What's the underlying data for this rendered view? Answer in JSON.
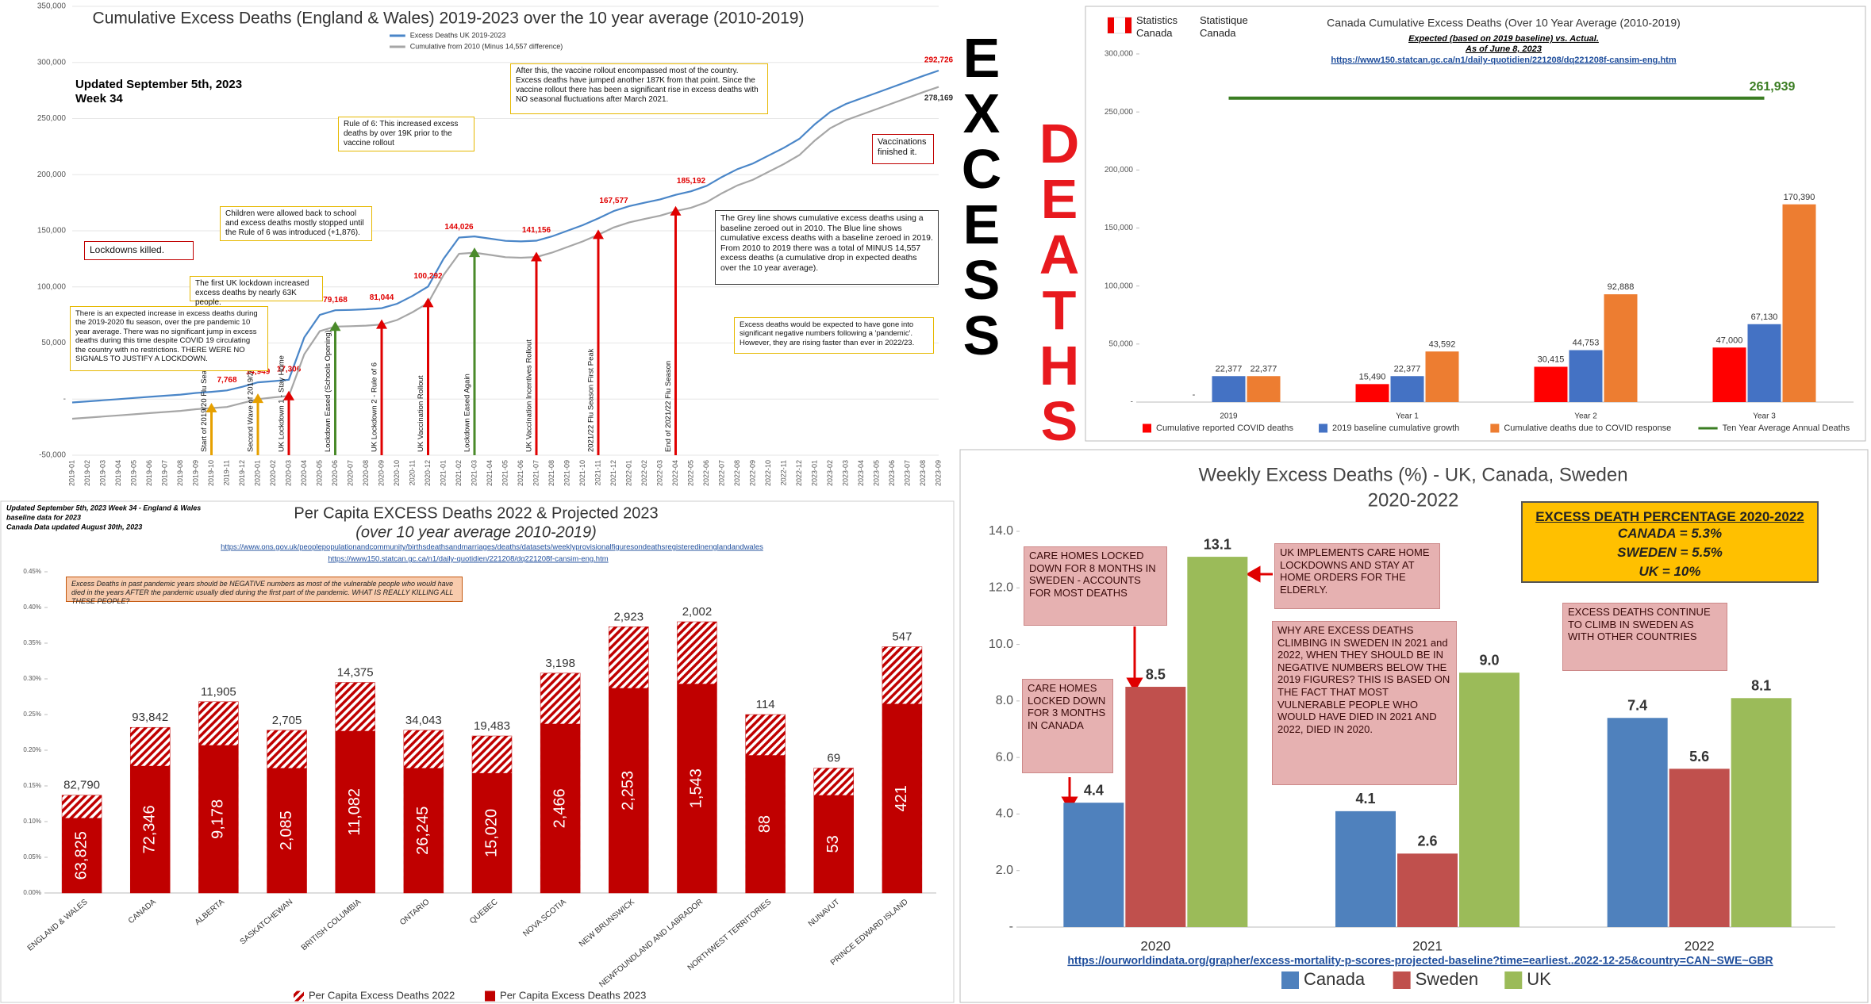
{
  "headline": [
    "EXCESS",
    "DEATHS"
  ],
  "chart_data": [
    {
      "type": "line",
      "title": "Cumulative Excess Deaths (England & Wales) 2019-2023 over the 10 year average (2010-2019)",
      "updated": [
        "Updated September 5th, 2023",
        "Week 34"
      ],
      "categories": [
        "2019-01",
        "2019-02",
        "2019-03",
        "2019-04",
        "2019-05",
        "2019-06",
        "2019-07",
        "2019-08",
        "2019-09",
        "2019-10",
        "2019-11",
        "2019-12",
        "2020-01",
        "2020-02",
        "2020-03",
        "2020-04",
        "2020-05",
        "2020-06",
        "2020-07",
        "2020-08",
        "2020-09",
        "2020-10",
        "2020-11",
        "2020-12",
        "2021-01",
        "2021-02",
        "2021-03",
        "2021-04",
        "2021-05",
        "2021-06",
        "2021-07",
        "2021-08",
        "2021-09",
        "2021-10",
        "2021-11",
        "2021-12",
        "2022-01",
        "2022-02",
        "2022-03",
        "2022-04",
        "2022-05",
        "2022-06",
        "2022-07",
        "2022-08",
        "2022-09",
        "2022-10",
        "2022-11",
        "2022-12",
        "2023-01",
        "2023-02",
        "2023-03",
        "2023-04",
        "2023-05",
        "2023-06",
        "2023-07",
        "2023-08",
        "2023-09"
      ],
      "series": [
        {
          "name": "Excess Deaths UK 2019-2023",
          "color": "#4a86c8",
          "values": [
            -3000,
            -2000,
            -1000,
            0,
            1000,
            2000,
            3000,
            4000,
            5500,
            6500,
            7768,
            11000,
            14949,
            16000,
            17306,
            55000,
            75000,
            79168,
            79500,
            80000,
            81044,
            85000,
            92000,
            100292,
            125000,
            144026,
            145000,
            143000,
            141000,
            140500,
            141156,
            145000,
            150000,
            155000,
            161000,
            167577,
            172000,
            175000,
            178000,
            182000,
            185192,
            190000,
            198000,
            205000,
            210000,
            217000,
            224000,
            232000,
            245000,
            256000,
            263000,
            268000,
            273000,
            278000,
            283000,
            288000,
            292726
          ],
          "value_labels": [
            null,
            null,
            null,
            null,
            null,
            null,
            null,
            null,
            null,
            null,
            "7,768",
            null,
            "14,949",
            null,
            "17,306",
            null,
            null,
            "79,168",
            null,
            null,
            "81,044",
            null,
            null,
            "100,292",
            null,
            "144,026",
            null,
            null,
            null,
            null,
            "141,156",
            null,
            null,
            null,
            null,
            "167,577",
            null,
            null,
            null,
            null,
            "185,192",
            null,
            null,
            null,
            null,
            null,
            null,
            null,
            null,
            null,
            null,
            null,
            null,
            null,
            null,
            null,
            "292,726"
          ]
        },
        {
          "name": "Cumulative from 2010 (Minus 14,557 difference)",
          "color": "#a6a6a6",
          "values": [
            -17500,
            -16500,
            -15500,
            -14500,
            -13500,
            -12500,
            -11500,
            -10500,
            -9000,
            -8000,
            -7000,
            -3500,
            0,
            1500,
            2700,
            40000,
            60500,
            64600,
            65000,
            65500,
            66500,
            70500,
            77500,
            85700,
            110500,
            129500,
            130500,
            128500,
            126500,
            126000,
            126600,
            130500,
            135500,
            140500,
            146500,
            153000,
            157500,
            160500,
            163500,
            167500,
            170600,
            175500,
            183500,
            190500,
            195500,
            202500,
            209500,
            217500,
            230500,
            241500,
            248500,
            253500,
            258500,
            263500,
            268500,
            273500,
            278169
          ],
          "value_labels": [
            null,
            null,
            null,
            null,
            null,
            null,
            null,
            null,
            null,
            null,
            null,
            null,
            null,
            null,
            null,
            null,
            null,
            null,
            null,
            null,
            null,
            null,
            null,
            null,
            null,
            null,
            null,
            null,
            null,
            null,
            null,
            null,
            null,
            null,
            null,
            null,
            null,
            null,
            null,
            null,
            null,
            null,
            null,
            null,
            null,
            null,
            null,
            null,
            null,
            null,
            null,
            null,
            null,
            null,
            null,
            null,
            "278,169"
          ]
        }
      ],
      "ylim": [
        -50000,
        350000
      ],
      "yticks": [
        {
          "value": -50000,
          "label": "-50,000"
        },
        {
          "value": 0,
          "label": "-"
        },
        {
          "value": 50000,
          "label": "50,000"
        },
        {
          "value": 100000,
          "label": "100,000"
        },
        {
          "value": 150000,
          "label": "150,000"
        },
        {
          "value": 200000,
          "label": "200,000"
        },
        {
          "value": 250000,
          "label": "250,000"
        },
        {
          "value": 300000,
          "label": "300,000"
        },
        {
          "value": 350000,
          "label": "350,000"
        }
      ],
      "grid": true,
      "events": [
        {
          "x": "2019-10",
          "label": "Start of 2019/20 Flu Season",
          "color": "#e6a000"
        },
        {
          "x": "2020-01",
          "label": "Second Wave of 2019/20 Flu Season",
          "color": "#e6a000"
        },
        {
          "x": "2020-03",
          "label": "UK Lockdown 1 - Stay Home",
          "color": "#e00000"
        },
        {
          "x": "2020-06",
          "label": "Lockdown Eased (Schools Opening)",
          "color": "#4a8a2a"
        },
        {
          "x": "2020-09",
          "label": "UK Lockdown 2 - Rule of 6",
          "color": "#e00000"
        },
        {
          "x": "2020-12",
          "label": "UK Vaccination Rollout",
          "color": "#e00000"
        },
        {
          "x": "2021-03",
          "label": "Lockdown Eased Again",
          "color": "#4a8a2a"
        },
        {
          "x": "2021-07",
          "label": "UK Vaccination Incentives Rollout",
          "color": "#e00000"
        },
        {
          "x": "2021-11",
          "label": "2021/22 Flu Season First Peak",
          "color": "#e00000"
        },
        {
          "x": "2022-04",
          "label": "End of 2021/22 Flu Season",
          "color": "#e00000"
        }
      ],
      "notes": [
        "After this, the vaccine rollout encompassed most of the country. Excess deaths have jumped another 187K from that point. Since the vaccine rollout there has been a significant rise in excess deaths with NO seasonal fluctuations after March 2021.",
        "Rule of 6: This increased excess deaths by over 19K prior to the vaccine rollout",
        "Vaccinations finished it.",
        "Children were allowed back to school and excess deaths mostly stopped until the Rule of 6 was introduced (+1,876).",
        "Lockdowns killed.",
        "The first UK lockdown increased excess deaths by nearly 63K people.",
        "There is an expected increase in excess deaths during the 2019-2020 flu season, over the pre pandemic 10 year average. There was no significant jump in excess deaths during this time despite COVID 19 circulating the country with no restrictions. THERE WERE NO SIGNALS TO JUSTIFY A LOCKDOWN.",
        "The Grey line shows cumulative excess deaths using a baseline zeroed out in 2010. The Blue line shows cumulative excess deaths with a baseline zeroed in 2019. From 2010 to 2019 there was a total of MINUS 14,557 excess deaths (a cumulative drop in expected deaths over the 10 year average).",
        "Excess deaths would be expected to have gone into significant negative numbers following a 'pandemic'. However, they are rising faster than ever in 2022/23."
      ]
    },
    {
      "type": "bar",
      "agency": [
        "Statistics Canada",
        "Statistique Canada"
      ],
      "title": "Canada Cumulative Excess Deaths (Over 10 Year Average (2010-2019)",
      "subtitle": [
        "Expected (based on 2019 baseline) vs. Actual.",
        "As of June 8, 2023"
      ],
      "source": "https://www150.statcan.gc.ca/n1/daily-quotidien/221208/dq221208f-cansim-eng.htm",
      "categories": [
        "2019",
        "Year 1",
        "Year 2",
        "Year 3"
      ],
      "series": [
        {
          "name": "Cumulative reported COVID deaths",
          "color": "#ff0000",
          "values": [
            0,
            15490,
            30415,
            47000
          ],
          "value_labels": [
            "-",
            "15,490",
            "30,415",
            "47,000"
          ]
        },
        {
          "name": "2019 baseline cumulative growth",
          "color": "#4472c4",
          "values": [
            22377,
            22377,
            44753,
            67130
          ],
          "value_labels": [
            "22,377",
            "22,377",
            "44,753",
            "67,130"
          ]
        },
        {
          "name": "Cumulative deaths due to COVID response",
          "color": "#ed7d31",
          "values": [
            22377,
            43592,
            92888,
            170390
          ],
          "value_labels": [
            "22,377",
            "43,592",
            "92,888",
            "170,390"
          ]
        },
        {
          "name": "Ten Year Average Annual Deaths",
          "color": "#3a7d22",
          "type": "line",
          "values": [
            261939,
            261939,
            261939,
            261939
          ],
          "value_labels": [
            null,
            null,
            null,
            "261,939"
          ]
        }
      ],
      "ylim": [
        0,
        300000
      ],
      "yticks": [
        {
          "value": 0,
          "label": "-"
        },
        {
          "value": 50000,
          "label": "50,000"
        },
        {
          "value": 100000,
          "label": "100,000"
        },
        {
          "value": 150000,
          "label": "150,000"
        },
        {
          "value": 200000,
          "label": "200,000"
        },
        {
          "value": 250000,
          "label": "250,000"
        },
        {
          "value": 300000,
          "label": "300,000"
        }
      ],
      "grid": false
    },
    {
      "type": "bar",
      "header": [
        "Updated September 5th, 2023 Week 34 - England & Wales",
        "baseline data for 2023",
        "Canada Data updated August 30th, 2023"
      ],
      "title": "Per Capita EXCESS Deaths 2022 & Projected 2023",
      "subtitle": "(over 10 year average 2010-2019)",
      "sources": [
        "https://www.ons.gov.uk/peoplepopulationandcommunity/birthsdeathsandmarriages/deaths/datasets/weeklyprovisionalfiguresondeathsregisteredinenglandandwales",
        "https://www150.statcan.gc.ca/n1/daily-quotidien/221208/dq221208f-cansim-eng.htm"
      ],
      "note": "Excess Deaths in past pandemic years should be NEGATIVE numbers as most of the vulnerable people who would have died in the years AFTER the pandemic usually died during the first part of the pandemic. WHAT IS REALLY KILLING ALL THESE PEOPLE?",
      "categories": [
        "ENGLAND & WALES",
        "CANADA",
        "ALBERTA",
        "SASKATCHEWAN",
        "BRITISH COLUMBIA",
        "ONTARIO",
        "QUEBEC",
        "NOVA SCOTIA",
        "NEW BRUNSWICK",
        "NEWFOUNDLAND AND LABRADOR",
        "NORTHWEST TERRITORIES",
        "NUNAVUT",
        "PRINCE EDWARD ISLAND"
      ],
      "overlay": true,
      "series": [
        {
          "name": "Per Capita Excess Deaths 2022",
          "color": "#c00000",
          "pattern": "hatch",
          "values": [
            0.137,
            0.232,
            0.268,
            0.228,
            0.295,
            0.228,
            0.22,
            0.308,
            0.373,
            0.38,
            0.25,
            0.175,
            0.345
          ],
          "deaths": [
            "82,790",
            "93,842",
            "11,905",
            "2,705",
            "14,375",
            "34,043",
            "19,483",
            "3,198",
            "2,923",
            "2,002",
            "114",
            "69",
            "547"
          ]
        },
        {
          "name": "Per Capita Excess Deaths 2023",
          "color": "#c00000",
          "values": [
            0.105,
            0.178,
            0.207,
            0.175,
            0.227,
            0.175,
            0.168,
            0.237,
            0.287,
            0.293,
            0.193,
            0.137,
            0.265
          ],
          "deaths": [
            "63,825",
            "72,346",
            "9,178",
            "2,085",
            "11,082",
            "26,245",
            "15,020",
            "2,466",
            "2,253",
            "1,543",
            "88",
            "53",
            "421"
          ]
        }
      ],
      "ylim": [
        0,
        0.45
      ],
      "yticks": [
        {
          "value": 0,
          "label": "0.00%"
        },
        {
          "value": 0.05,
          "label": "0.05%"
        },
        {
          "value": 0.1,
          "label": "0.10%"
        },
        {
          "value": 0.15,
          "label": "0.15%"
        },
        {
          "value": 0.2,
          "label": "0.20%"
        },
        {
          "value": 0.25,
          "label": "0.25%"
        },
        {
          "value": 0.3,
          "label": "0.30%"
        },
        {
          "value": 0.35,
          "label": "0.35%"
        },
        {
          "value": 0.4,
          "label": "0.40%"
        },
        {
          "value": 0.45,
          "label": "0.45%"
        }
      ],
      "grid": false
    },
    {
      "type": "bar",
      "title": "Weekly Excess Deaths (%) -  UK, Canada, Sweden",
      "subtitle": "2020-2022",
      "summary": {
        "title": "EXCESS DEATH PERCENTAGE 2020-2022",
        "lines": [
          "CANADA = 5.3%",
          "SWEDEN = 5.5%",
          "UK = 10%"
        ]
      },
      "notes": [
        "CARE HOMES LOCKED DOWN FOR 8 MONTHS IN SWEDEN - ACCOUNTS FOR MOST DEATHS",
        "UK IMPLEMENTS CARE HOME LOCKDOWNS AND STAY AT HOME ORDERS FOR THE ELDERLY.",
        "CARE HOMES LOCKED DOWN FOR 3 MONTHS IN CANADA",
        "WHY ARE EXCESS DEATHS CLIMBING IN SWEDEN IN 2021 and 2022, WHEN THEY SHOULD BE IN NEGATIVE NUMBERS BELOW THE 2019 FIGURES? THIS IS BASED ON THE FACT THAT MOST VULNERABLE PEOPLE WHO WOULD HAVE DIED IN 2021 AND 2022, DIED IN 2020.",
        "EXCESS DEATHS CONTINUE TO CLIMB IN SWEDEN AS WITH OTHER COUNTRIES"
      ],
      "source": "https://ourworldindata.org/grapher/excess-mortality-p-scores-projected-baseline?time=earliest..2022-12-25&country=CAN~SWE~GBR",
      "categories": [
        "2020",
        "2021",
        "2022"
      ],
      "series": [
        {
          "name": "Canada",
          "color": "#4f81bd",
          "values": [
            4.4,
            4.1,
            7.4
          ],
          "value_labels": [
            "4.4",
            "4.1",
            "7.4"
          ]
        },
        {
          "name": "Sweden",
          "color": "#c0504d",
          "values": [
            8.5,
            2.6,
            5.6
          ],
          "value_labels": [
            "8.5",
            "2.6",
            "5.6"
          ]
        },
        {
          "name": "UK",
          "color": "#9bbb59",
          "values": [
            13.1,
            9.0,
            8.1
          ],
          "value_labels": [
            "13.1",
            "9.0",
            "8.1"
          ]
        }
      ],
      "ylim": [
        0,
        14
      ],
      "yticks": [
        {
          "value": 0,
          "label": "-"
        },
        {
          "value": 2,
          "label": "2.0"
        },
        {
          "value": 4,
          "label": "4.0"
        },
        {
          "value": 6,
          "label": "6.0"
        },
        {
          "value": 8,
          "label": "8.0"
        },
        {
          "value": 10,
          "label": "10.0"
        },
        {
          "value": 12,
          "label": "12.0"
        },
        {
          "value": 14,
          "label": "14.0"
        }
      ],
      "grid": false
    }
  ]
}
